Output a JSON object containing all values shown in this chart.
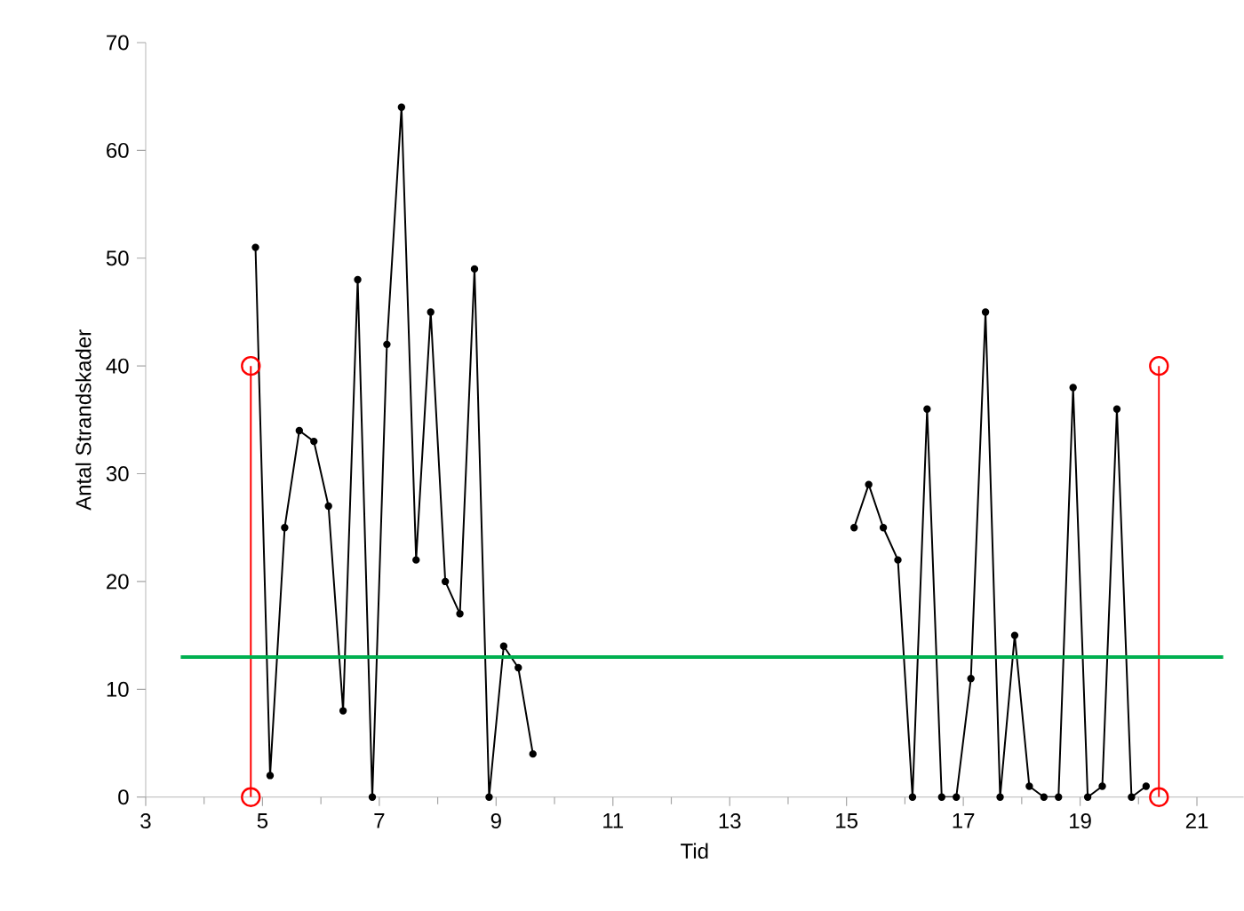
{
  "chart_data": {
    "type": "line",
    "xlabel": "Tid",
    "ylabel": "Antal Strandskader",
    "xlim": [
      3,
      21.8
    ],
    "ylim": [
      0,
      70
    ],
    "xticks": [
      3,
      5,
      7,
      9,
      11,
      13,
      15,
      17,
      19,
      21
    ],
    "yticks": [
      0,
      10,
      20,
      30,
      40,
      50,
      60,
      70
    ],
    "grid": false,
    "line_style": "solid",
    "series": [
      {
        "color": "#000000",
        "marker": "circle",
        "x": [
          4.88,
          5.13,
          5.38,
          5.63,
          5.88,
          6.13,
          6.38,
          6.63,
          6.88,
          7.13,
          7.38,
          7.63,
          7.88,
          8.13,
          8.38,
          8.63,
          8.88,
          9.13,
          9.38,
          9.63
        ],
        "values": [
          51,
          2,
          25,
          34,
          33,
          27,
          8,
          48,
          0,
          42,
          64,
          22,
          45,
          20,
          17,
          49,
          0,
          14,
          12,
          4
        ]
      },
      {
        "color": "#000000",
        "marker": "circle",
        "x": [
          15.13,
          15.38,
          15.63,
          15.88,
          16.13,
          16.38,
          16.63,
          16.88,
          17.13,
          17.38,
          17.63,
          17.88,
          18.13,
          18.38,
          18.63,
          18.88,
          19.13,
          19.38,
          19.63,
          19.88,
          20.13
        ],
        "values": [
          25,
          29,
          25,
          22,
          0,
          36,
          0,
          0,
          11,
          45,
          0,
          15,
          1,
          0,
          0,
          38,
          0,
          1,
          36,
          0,
          1
        ]
      },
      {
        "color": "#ff0000",
        "marker": "open circle",
        "x": [
          4.8,
          4.8
        ],
        "values": [
          0,
          40
        ]
      },
      {
        "color": "#ff0000",
        "marker": "open circle",
        "x": [
          20.35,
          20.35
        ],
        "values": [
          0,
          40
        ]
      },
      {
        "color": "#00b050",
        "marker": "none",
        "x": [
          3.6,
          21.45
        ],
        "values": [
          13,
          13
        ]
      }
    ]
  }
}
